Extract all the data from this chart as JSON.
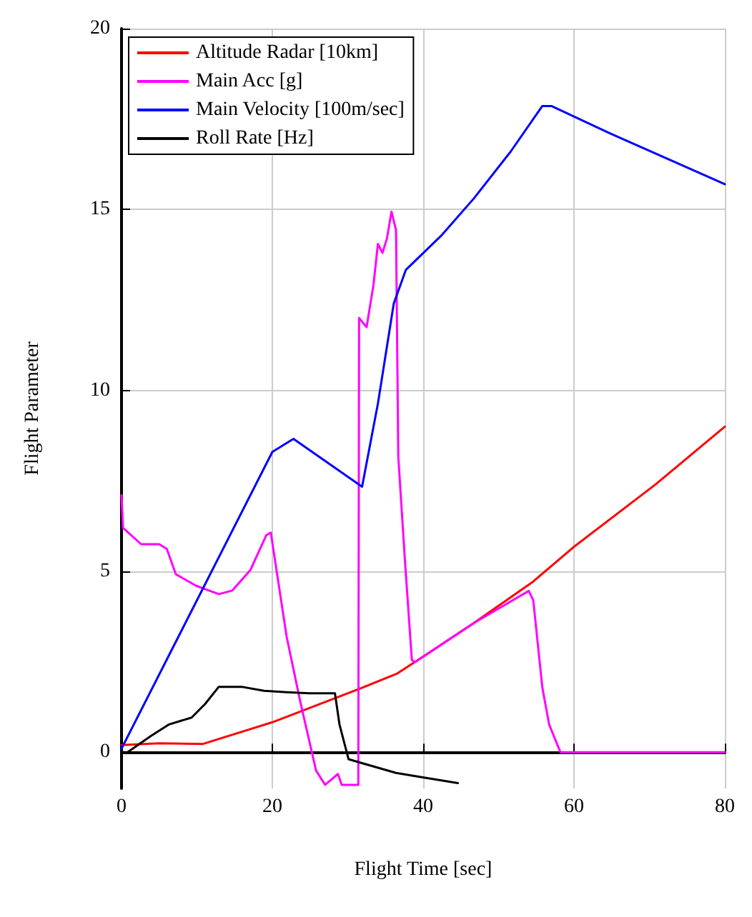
{
  "chart_data": {
    "type": "line",
    "xlabel": "Flight Time [sec]",
    "ylabel": "Flight Parameter",
    "xlim": [
      0,
      80
    ],
    "ylim": [
      -1,
      20
    ],
    "xticks": [
      0,
      20,
      40,
      60,
      80
    ],
    "yticks": [
      0,
      5,
      10,
      15,
      20
    ],
    "grid": true,
    "legend": "top left",
    "marker": "none",
    "line_style": "solid",
    "series": [
      {
        "name": "Altitude Radar [10km]",
        "color": "#ff0000",
        "x": [
          0,
          5,
          10.8,
          20,
          28,
          32,
          36.5,
          41.2,
          46.7,
          54.6,
          60,
          70.8,
          80
        ],
        "values": [
          0.2,
          0.25,
          0.23,
          0.83,
          1.47,
          1.79,
          2.17,
          2.81,
          3.57,
          4.72,
          5.68,
          7.4,
          9.0
        ]
      },
      {
        "name": "Main Acc [g]",
        "color": "#ff00ff",
        "x": [
          0,
          0.2,
          2.6,
          5,
          6,
          7.2,
          9.9,
          12.9,
          14.7,
          17.1,
          19.2,
          19.8,
          20.4,
          21.9,
          23.7,
          25.8,
          27,
          28.7,
          29.2,
          31.4,
          31.5,
          32.5,
          33.4,
          34,
          34.6,
          35.2,
          35.8,
          36.4,
          36.7,
          37.6,
          38.5,
          38.9,
          46.7,
          54,
          54.6,
          55.8,
          56.7,
          58.2,
          80
        ],
        "values": [
          7.1,
          6.2,
          5.75,
          5.75,
          5.62,
          4.92,
          4.6,
          4.37,
          4.47,
          5.04,
          6.0,
          6.07,
          5.24,
          3.19,
          1.4,
          -0.51,
          -0.9,
          -0.6,
          -0.9,
          -0.9,
          12.0,
          11.75,
          12.9,
          14.05,
          13.8,
          14.2,
          14.94,
          14.43,
          8.17,
          5.24,
          2.55,
          2.49,
          3.57,
          4.46,
          4.2,
          1.79,
          0.77,
          0,
          0
        ]
      },
      {
        "name": "Main Velocity [100m/sec]",
        "color": "#0000ff",
        "x": [
          0,
          20,
          22.8,
          31.9,
          34,
          36.1,
          37.7,
          42.5,
          46.7,
          51.6,
          55.8,
          57,
          64.8,
          80
        ],
        "values": [
          0.1,
          8.3,
          8.66,
          7.34,
          9.64,
          12.4,
          13.33,
          14.3,
          15.3,
          16.6,
          17.86,
          17.86,
          17.1,
          15.7
        ]
      },
      {
        "name": "Roll Rate [Hz]",
        "color": "#000000",
        "x": [
          0,
          0.8,
          3.9,
          6.3,
          9.3,
          11.1,
          12.9,
          15.9,
          18.9,
          21.9,
          24.9,
          28.3,
          28.9,
          30.1,
          32.2,
          36.4,
          40.1,
          44.6
        ],
        "values": [
          0,
          0,
          0.45,
          0.77,
          0.96,
          1.34,
          1.81,
          1.81,
          1.7,
          1.66,
          1.63,
          1.63,
          0.77,
          -0.19,
          -0.32,
          -0.57,
          -0.7,
          -0.85
        ]
      }
    ]
  }
}
